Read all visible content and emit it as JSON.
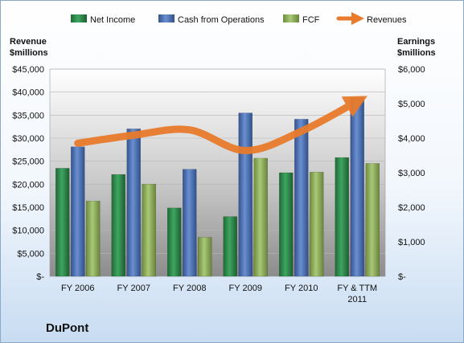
{
  "chart_data": {
    "type": "bar",
    "categories": [
      "FY 2006",
      "FY 2007",
      "FY 2008",
      "FY 2009",
      "FY 2010",
      "FY & TTM 2011"
    ],
    "left_axis": {
      "label_line1": "Revenue",
      "label_line2": "$millions",
      "ylim": [
        0,
        45000
      ],
      "ticks": [
        0,
        5000,
        10000,
        15000,
        20000,
        25000,
        30000,
        35000,
        40000,
        45000
      ],
      "tick_labels": [
        "$-",
        "$5,000",
        "$10,000",
        "$15,000",
        "$20,000",
        "$25,000",
        "$30,000",
        "$35,000",
        "$40,000",
        "$45,000"
      ]
    },
    "right_axis": {
      "label_line1": "Earnings",
      "label_line2": "$millions",
      "ylim": [
        0,
        6000
      ],
      "ticks": [
        0,
        1000,
        2000,
        3000,
        4000,
        5000,
        6000
      ],
      "tick_labels": [
        "$-",
        "$1,000",
        "$2,000",
        "$3,000",
        "$4,000",
        "$5,000",
        "$6,000"
      ]
    },
    "series": [
      {
        "name": "Net Income",
        "axis": "right",
        "kind": "bar",
        "color": "#2e8b4a",
        "values": [
          3130,
          2950,
          1980,
          1730,
          3000,
          3440
        ]
      },
      {
        "name": "Cash from Operations",
        "axis": "right",
        "kind": "bar",
        "color": "#4a6fb3",
        "values": [
          3750,
          4270,
          3100,
          4730,
          4550,
          5170
        ]
      },
      {
        "name": "FCF",
        "axis": "right",
        "kind": "bar",
        "color": "#8fb35a",
        "values": [
          2180,
          2670,
          1130,
          3420,
          3020,
          3270
        ]
      },
      {
        "name": "Revenues",
        "axis": "left",
        "kind": "line",
        "color": "#e87b2c",
        "values": [
          28900,
          30650,
          31800,
          27300,
          31500,
          38000
        ]
      }
    ],
    "grid": true,
    "legend": "top"
  },
  "footer": {
    "company": "DuPont"
  }
}
